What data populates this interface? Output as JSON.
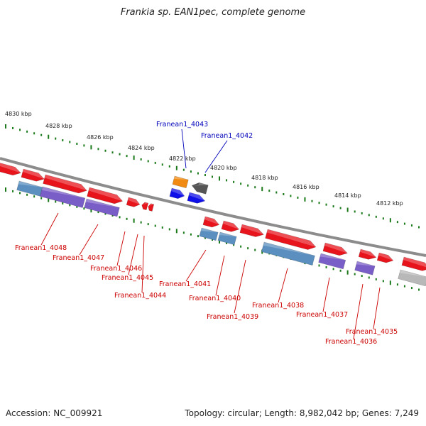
{
  "title": "Frankia sp. EAN1pec, complete genome",
  "footer": {
    "accession": "Accession: NC_009921",
    "topology": "Topology: circular; Length: 8,982,042 bp; Genes: 7,249"
  },
  "kbp_markers": [
    "4830 kbp",
    "4828 kbp",
    "4826 kbp",
    "4824 kbp",
    "4822 kbp",
    "4820 kbp",
    "4818 kbp",
    "4816 kbp",
    "4814 kbp",
    "4812 kbp"
  ],
  "colors": {
    "backbone": "#8c8c8c",
    "tick": "#1a7a1a",
    "cds": "#e8141c",
    "rna_blue": "#5a8fc0",
    "rna_purple": "#7a5ec8",
    "orange": "#f08a10",
    "dark": "#555555",
    "blue": "#1010e8",
    "grey": "#b8b8b8",
    "label_red": "#cc0000",
    "label_blue": "#0000bb"
  },
  "genes_above": [
    {
      "id": "Franean1_4043",
      "color": "label_blue"
    },
    {
      "id": "Franean1_4042",
      "color": "label_blue"
    }
  ],
  "genes_below": [
    "Franean1_4048",
    "Franean1_4047",
    "Franean1_4046",
    "Franean1_4045",
    "Franean1_4044",
    "Franean1_4041",
    "Franean1_4040",
    "Franean1_4039",
    "Franean1_4038",
    "Franean1_4037",
    "Franean1_4035",
    "Franean1_4036"
  ]
}
